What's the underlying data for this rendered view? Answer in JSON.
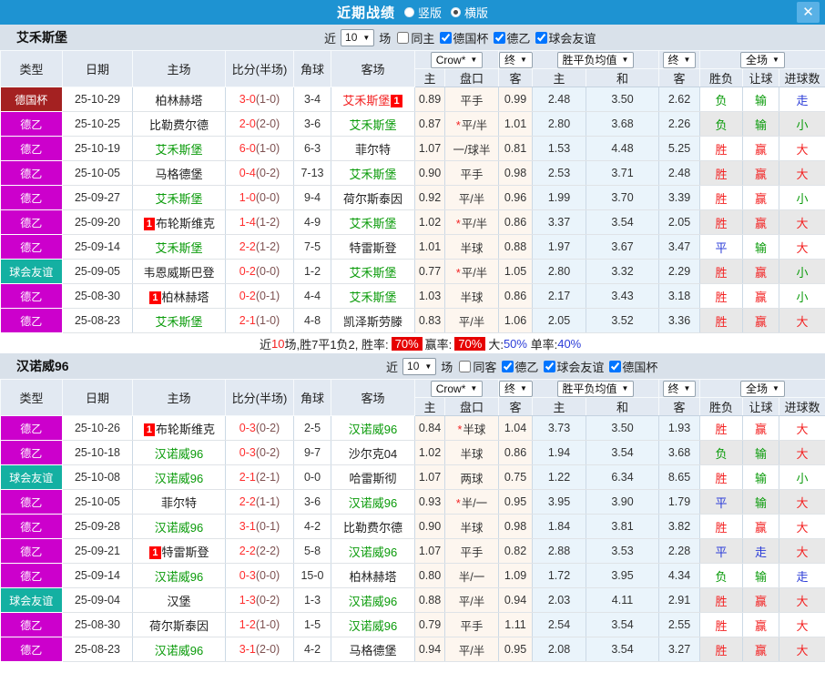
{
  "titlebar": {
    "title": "近期战绩",
    "radio_vertical": "竖版",
    "radio_horizontal": "横版",
    "close": "✕"
  },
  "colors": {
    "accent_blue": "#1e93d2",
    "cup": "#a42121",
    "de2": "#cc00cc",
    "friendly": "#14b0a2",
    "win_red": "#f32222",
    "loss_green": "#0a9b0a",
    "draw_blue": "#2b3cd8",
    "rate_badge": "#e60000"
  },
  "table_header": {
    "cols": [
      "类型",
      "日期",
      "主场",
      "比分(半场)",
      "角球",
      "客场"
    ],
    "dd_crow": "Crow*",
    "dd_final1": "终",
    "dd_avg": "胜平负均值",
    "dd_final2": "终",
    "dd_full": "全场",
    "arrow": "▼",
    "sub": [
      "主",
      "盘口",
      "客",
      "主",
      "和",
      "客",
      "胜负",
      "让球",
      "进球数"
    ]
  },
  "sections": [
    {
      "team": "艾禾斯堡",
      "filter": {
        "near_label": "近",
        "count": "10",
        "games_label": "场",
        "same_label": "同主",
        "same_checked": false,
        "leagues": [
          "德国杯",
          "德乙",
          "球会友谊"
        ]
      },
      "rows": [
        {
          "type": "德国杯",
          "type_key": "cup",
          "date": "25-10-29",
          "home": {
            "n": "柏林赫塔",
            "c": "k",
            "b": ""
          },
          "score": "3-0",
          "half": "(1-0)",
          "corner": "3-4",
          "away": {
            "n": "艾禾斯堡",
            "c": "r",
            "b": "1"
          },
          "odds": [
            "0.89",
            "平手",
            "0.99"
          ],
          "star": false,
          "avg": [
            "2.48",
            "3.50",
            "2.62"
          ],
          "res": [
            "负",
            "输",
            "走"
          ],
          "res_c": [
            "g",
            "g",
            "b"
          ]
        },
        {
          "type": "德乙",
          "type_key": "de2",
          "date": "25-10-25",
          "home": {
            "n": "比勒费尔德",
            "c": "k",
            "b": ""
          },
          "score": "2-0",
          "half": "(2-0)",
          "corner": "3-6",
          "away": {
            "n": "艾禾斯堡",
            "c": "g",
            "b": ""
          },
          "odds": [
            "0.87",
            "平/半",
            "1.01"
          ],
          "star": true,
          "avg": [
            "2.80",
            "3.68",
            "2.26"
          ],
          "res": [
            "负",
            "输",
            "小"
          ],
          "res_c": [
            "g",
            "g",
            "g"
          ]
        },
        {
          "type": "德乙",
          "type_key": "de2",
          "date": "25-10-19",
          "home": {
            "n": "艾禾斯堡",
            "c": "g",
            "b": ""
          },
          "score": "6-0",
          "half": "(1-0)",
          "corner": "6-3",
          "away": {
            "n": "菲尔特",
            "c": "k",
            "b": ""
          },
          "odds": [
            "1.07",
            "一/球半",
            "0.81"
          ],
          "star": false,
          "avg": [
            "1.53",
            "4.48",
            "5.25"
          ],
          "res": [
            "胜",
            "赢",
            "大"
          ],
          "res_c": [
            "r",
            "r",
            "r"
          ]
        },
        {
          "type": "德乙",
          "type_key": "de2",
          "date": "25-10-05",
          "home": {
            "n": "马格德堡",
            "c": "k",
            "b": ""
          },
          "score": "0-4",
          "half": "(0-2)",
          "corner": "7-13",
          "away": {
            "n": "艾禾斯堡",
            "c": "g",
            "b": ""
          },
          "odds": [
            "0.90",
            "平手",
            "0.98"
          ],
          "star": false,
          "avg": [
            "2.53",
            "3.71",
            "2.48"
          ],
          "res": [
            "胜",
            "赢",
            "大"
          ],
          "res_c": [
            "r",
            "r",
            "r"
          ]
        },
        {
          "type": "德乙",
          "type_key": "de2",
          "date": "25-09-27",
          "home": {
            "n": "艾禾斯堡",
            "c": "g",
            "b": ""
          },
          "score": "1-0",
          "half": "(0-0)",
          "corner": "9-4",
          "away": {
            "n": "荷尔斯泰因",
            "c": "k",
            "b": ""
          },
          "odds": [
            "0.92",
            "平/半",
            "0.96"
          ],
          "star": false,
          "avg": [
            "1.99",
            "3.70",
            "3.39"
          ],
          "res": [
            "胜",
            "赢",
            "小"
          ],
          "res_c": [
            "r",
            "r",
            "g"
          ]
        },
        {
          "type": "德乙",
          "type_key": "de2",
          "date": "25-09-20",
          "home": {
            "n": "布轮斯维克",
            "c": "k",
            "b": "1"
          },
          "score": "1-4",
          "half": "(1-2)",
          "corner": "4-9",
          "away": {
            "n": "艾禾斯堡",
            "c": "g",
            "b": ""
          },
          "odds": [
            "1.02",
            "平/半",
            "0.86"
          ],
          "star": true,
          "avg": [
            "3.37",
            "3.54",
            "2.05"
          ],
          "res": [
            "胜",
            "赢",
            "大"
          ],
          "res_c": [
            "r",
            "r",
            "r"
          ]
        },
        {
          "type": "德乙",
          "type_key": "de2",
          "date": "25-09-14",
          "home": {
            "n": "艾禾斯堡",
            "c": "g",
            "b": ""
          },
          "score": "2-2",
          "half": "(1-2)",
          "corner": "7-5",
          "away": {
            "n": "特雷斯登",
            "c": "k",
            "b": ""
          },
          "odds": [
            "1.01",
            "半球",
            "0.88"
          ],
          "star": false,
          "avg": [
            "1.97",
            "3.67",
            "3.47"
          ],
          "res": [
            "平",
            "输",
            "大"
          ],
          "res_c": [
            "b",
            "g",
            "r"
          ]
        },
        {
          "type": "球会友谊",
          "type_key": "friendly",
          "date": "25-09-05",
          "home": {
            "n": "韦恩威斯巴登",
            "c": "k",
            "b": ""
          },
          "score": "0-2",
          "half": "(0-0)",
          "corner": "1-2",
          "away": {
            "n": "艾禾斯堡",
            "c": "g",
            "b": ""
          },
          "odds": [
            "0.77",
            "平/半",
            "1.05"
          ],
          "star": true,
          "avg": [
            "2.80",
            "3.32",
            "2.29"
          ],
          "res": [
            "胜",
            "赢",
            "小"
          ],
          "res_c": [
            "r",
            "r",
            "g"
          ]
        },
        {
          "type": "德乙",
          "type_key": "de2",
          "date": "25-08-30",
          "home": {
            "n": "柏林赫塔",
            "c": "k",
            "b": "1"
          },
          "score": "0-2",
          "half": "(0-1)",
          "corner": "4-4",
          "away": {
            "n": "艾禾斯堡",
            "c": "g",
            "b": ""
          },
          "odds": [
            "1.03",
            "半球",
            "0.86"
          ],
          "star": false,
          "avg": [
            "2.17",
            "3.43",
            "3.18"
          ],
          "res": [
            "胜",
            "赢",
            "小"
          ],
          "res_c": [
            "r",
            "r",
            "g"
          ]
        },
        {
          "type": "德乙",
          "type_key": "de2",
          "date": "25-08-23",
          "home": {
            "n": "艾禾斯堡",
            "c": "g",
            "b": ""
          },
          "score": "2-1",
          "half": "(1-0)",
          "corner": "4-8",
          "away": {
            "n": "凯泽斯劳滕",
            "c": "k",
            "b": ""
          },
          "odds": [
            "0.83",
            "平/半",
            "1.06"
          ],
          "star": false,
          "avg": [
            "2.05",
            "3.52",
            "3.36"
          ],
          "res": [
            "胜",
            "赢",
            "大"
          ],
          "res_c": [
            "r",
            "r",
            "r"
          ]
        }
      ],
      "summary": {
        "p1": "近",
        "p2": "10",
        "p3": "场,胜7平1负2, 胜率:",
        "badge1": "70%",
        "p4": "赢率:",
        "badge2": "70%",
        "p5": "大:",
        "v1": "50%",
        "p6": "单率:",
        "v2": "40%"
      }
    },
    {
      "team": "汉诺威96",
      "filter": {
        "near_label": "近",
        "count": "10",
        "games_label": "场",
        "same_label": "同客",
        "same_checked": false,
        "leagues": [
          "德乙",
          "球会友谊",
          "德国杯"
        ]
      },
      "rows": [
        {
          "type": "德乙",
          "type_key": "de2",
          "date": "25-10-26",
          "home": {
            "n": "布轮斯维克",
            "c": "k",
            "b": "1"
          },
          "score": "0-3",
          "half": "(0-2)",
          "corner": "2-5",
          "away": {
            "n": "汉诺威96",
            "c": "g",
            "b": ""
          },
          "odds": [
            "0.84",
            "半球",
            "1.04"
          ],
          "star": true,
          "avg": [
            "3.73",
            "3.50",
            "1.93"
          ],
          "res": [
            "胜",
            "赢",
            "大"
          ],
          "res_c": [
            "r",
            "r",
            "r"
          ]
        },
        {
          "type": "德乙",
          "type_key": "de2",
          "date": "25-10-18",
          "home": {
            "n": "汉诺威96",
            "c": "g",
            "b": ""
          },
          "score": "0-3",
          "half": "(0-2)",
          "corner": "9-7",
          "away": {
            "n": "沙尔克04",
            "c": "k",
            "b": ""
          },
          "odds": [
            "1.02",
            "半球",
            "0.86"
          ],
          "star": false,
          "avg": [
            "1.94",
            "3.54",
            "3.68"
          ],
          "res": [
            "负",
            "输",
            "大"
          ],
          "res_c": [
            "g",
            "g",
            "r"
          ]
        },
        {
          "type": "球会友谊",
          "type_key": "friendly",
          "date": "25-10-08",
          "home": {
            "n": "汉诺威96",
            "c": "g",
            "b": ""
          },
          "score": "2-1",
          "half": "(2-1)",
          "corner": "0-0",
          "away": {
            "n": "哈雷斯彻",
            "c": "k",
            "b": ""
          },
          "odds": [
            "1.07",
            "两球",
            "0.75"
          ],
          "star": false,
          "avg": [
            "1.22",
            "6.34",
            "8.65"
          ],
          "res": [
            "胜",
            "输",
            "小"
          ],
          "res_c": [
            "r",
            "g",
            "g"
          ]
        },
        {
          "type": "德乙",
          "type_key": "de2",
          "date": "25-10-05",
          "home": {
            "n": "菲尔特",
            "c": "k",
            "b": ""
          },
          "score": "2-2",
          "half": "(1-1)",
          "corner": "3-6",
          "away": {
            "n": "汉诺威96",
            "c": "g",
            "b": ""
          },
          "odds": [
            "0.93",
            "半/一",
            "0.95"
          ],
          "star": true,
          "avg": [
            "3.95",
            "3.90",
            "1.79"
          ],
          "res": [
            "平",
            "输",
            "大"
          ],
          "res_c": [
            "b",
            "g",
            "r"
          ]
        },
        {
          "type": "德乙",
          "type_key": "de2",
          "date": "25-09-28",
          "home": {
            "n": "汉诺威96",
            "c": "g",
            "b": ""
          },
          "score": "3-1",
          "half": "(0-1)",
          "corner": "4-2",
          "away": {
            "n": "比勒费尔德",
            "c": "k",
            "b": ""
          },
          "odds": [
            "0.90",
            "半球",
            "0.98"
          ],
          "star": false,
          "avg": [
            "1.84",
            "3.81",
            "3.82"
          ],
          "res": [
            "胜",
            "赢",
            "大"
          ],
          "res_c": [
            "r",
            "r",
            "r"
          ]
        },
        {
          "type": "德乙",
          "type_key": "de2",
          "date": "25-09-21",
          "home": {
            "n": "特雷斯登",
            "c": "k",
            "b": "1"
          },
          "score": "2-2",
          "half": "(2-2)",
          "corner": "5-8",
          "away": {
            "n": "汉诺威96",
            "c": "g",
            "b": ""
          },
          "odds": [
            "1.07",
            "平手",
            "0.82"
          ],
          "star": false,
          "avg": [
            "2.88",
            "3.53",
            "2.28"
          ],
          "res": [
            "平",
            "走",
            "大"
          ],
          "res_c": [
            "b",
            "b",
            "r"
          ]
        },
        {
          "type": "德乙",
          "type_key": "de2",
          "date": "25-09-14",
          "home": {
            "n": "汉诺威96",
            "c": "g",
            "b": ""
          },
          "score": "0-3",
          "half": "(0-0)",
          "corner": "15-0",
          "away": {
            "n": "柏林赫塔",
            "c": "k",
            "b": ""
          },
          "odds": [
            "0.80",
            "半/一",
            "1.09"
          ],
          "star": false,
          "avg": [
            "1.72",
            "3.95",
            "4.34"
          ],
          "res": [
            "负",
            "输",
            "走"
          ],
          "res_c": [
            "g",
            "g",
            "b"
          ]
        },
        {
          "type": "球会友谊",
          "type_key": "friendly",
          "date": "25-09-04",
          "home": {
            "n": "汉堡",
            "c": "k",
            "b": ""
          },
          "score": "1-3",
          "half": "(0-2)",
          "corner": "1-3",
          "away": {
            "n": "汉诺威96",
            "c": "g",
            "b": ""
          },
          "odds": [
            "0.88",
            "平/半",
            "0.94"
          ],
          "star": false,
          "avg": [
            "2.03",
            "4.11",
            "2.91"
          ],
          "res": [
            "胜",
            "赢",
            "大"
          ],
          "res_c": [
            "r",
            "r",
            "r"
          ]
        },
        {
          "type": "德乙",
          "type_key": "de2",
          "date": "25-08-30",
          "home": {
            "n": "荷尔斯泰因",
            "c": "k",
            "b": ""
          },
          "score": "1-2",
          "half": "(1-0)",
          "corner": "1-5",
          "away": {
            "n": "汉诺威96",
            "c": "g",
            "b": ""
          },
          "odds": [
            "0.79",
            "平手",
            "1.11"
          ],
          "star": false,
          "avg": [
            "2.54",
            "3.54",
            "2.55"
          ],
          "res": [
            "胜",
            "赢",
            "大"
          ],
          "res_c": [
            "r",
            "r",
            "r"
          ]
        },
        {
          "type": "德乙",
          "type_key": "de2",
          "date": "25-08-23",
          "home": {
            "n": "汉诺威96",
            "c": "g",
            "b": ""
          },
          "score": "3-1",
          "half": "(2-0)",
          "corner": "4-2",
          "away": {
            "n": "马格德堡",
            "c": "k",
            "b": ""
          },
          "odds": [
            "0.94",
            "平/半",
            "0.95"
          ],
          "star": false,
          "avg": [
            "2.08",
            "3.54",
            "3.27"
          ],
          "res": [
            "胜",
            "赢",
            "大"
          ],
          "res_c": [
            "r",
            "r",
            "r"
          ]
        }
      ]
    }
  ]
}
